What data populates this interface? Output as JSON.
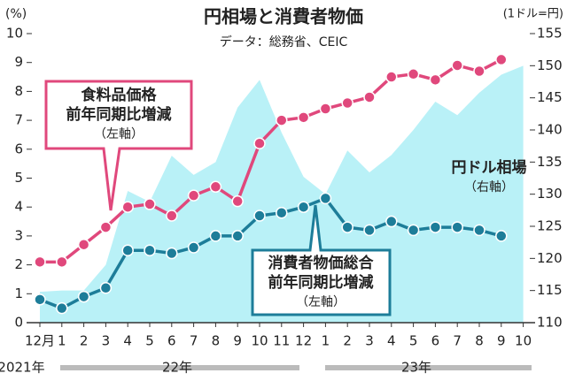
{
  "chart_data": {
    "type": "line",
    "title": "円相場と消費者物価",
    "subtitle": "データ：総務省、CEIC",
    "y_label": "(%)",
    "y2_label": "(1ドル=円)",
    "categories": [
      "12月",
      "1",
      "2",
      "3",
      "4",
      "5",
      "6",
      "7",
      "8",
      "9",
      "10",
      "11",
      "12",
      "1",
      "2",
      "3",
      "4",
      "5",
      "6",
      "7",
      "8",
      "9",
      "10"
    ],
    "years": [
      "2021年",
      "22年",
      "23年"
    ],
    "ylim": [
      0,
      10
    ],
    "yticks": [
      0,
      1,
      2,
      3,
      4,
      5,
      6,
      7,
      8,
      9,
      10
    ],
    "y2lim": [
      110,
      155
    ],
    "y2ticks": [
      110,
      115,
      120,
      125,
      130,
      135,
      140,
      145,
      150,
      155
    ],
    "grid": false,
    "series": [
      {
        "name": "円ドル相場",
        "type": "area",
        "axis": "y2",
        "color": "#b9f1f7",
        "values": [
          114.8,
          115,
          115,
          119,
          130.5,
          128.8,
          136,
          133,
          135,
          143.5,
          147.8,
          139.6,
          132.7,
          130,
          136.8,
          133.4,
          136.1,
          140,
          144.4,
          142.3,
          145.8,
          148.6,
          150
        ]
      },
      {
        "name": "食料品価格",
        "color": "#e0487c",
        "values": [
          2.1,
          2.1,
          2.7,
          3.3,
          4.0,
          4.1,
          3.7,
          4.4,
          4.7,
          4.2,
          6.2,
          7.0,
          7.1,
          7.4,
          7.6,
          7.8,
          8.5,
          8.6,
          8.4,
          8.9,
          8.7,
          9.1,
          null
        ]
      },
      {
        "name": "消費者物価総合",
        "color": "#1d7d99",
        "values": [
          0.8,
          0.5,
          0.9,
          1.2,
          2.5,
          2.5,
          2.4,
          2.6,
          3.0,
          3.0,
          3.7,
          3.8,
          4.0,
          4.3,
          3.3,
          3.2,
          3.5,
          3.2,
          3.3,
          3.3,
          3.2,
          3.0,
          null
        ]
      }
    ],
    "annotations": [
      {
        "lines": [
          "食料品価格",
          "前年同期比増減",
          "（左軸）"
        ]
      },
      {
        "lines": [
          "消費者物価総合",
          "前年同期比増減",
          "（左軸）"
        ]
      },
      {
        "lines": [
          "円ドル相場",
          "（右軸）"
        ]
      }
    ]
  }
}
